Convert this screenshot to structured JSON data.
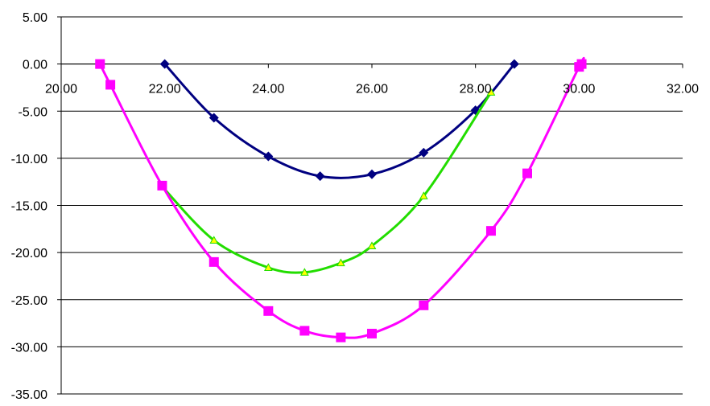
{
  "chart_data": {
    "type": "scatter",
    "title": "",
    "xlabel": "",
    "ylabel": "",
    "xlim": [
      20,
      32
    ],
    "ylim": [
      -35,
      5
    ],
    "x_ticks": [
      "20.00",
      "22.00",
      "24.00",
      "26.00",
      "28.00",
      "30.00",
      "32.00"
    ],
    "y_ticks": [
      "5.00",
      "0.00",
      "-5.00",
      "-10.00",
      "-15.00",
      "-20.00",
      "-25.00",
      "-30.00",
      "-35.00"
    ],
    "grid": "horizontal",
    "legend": "none",
    "series": [
      {
        "color": "#000080",
        "marker": "diamond",
        "points": [
          [
            22.0,
            0.0
          ],
          [
            22.95,
            -5.7
          ],
          [
            24.0,
            -9.8
          ],
          [
            25.0,
            -11.9
          ],
          [
            26.0,
            -11.7
          ],
          [
            27.0,
            -9.4
          ],
          [
            28.0,
            -4.9
          ],
          [
            28.75,
            0.0
          ]
        ]
      },
      {
        "color": "#22dd00",
        "marker_color": "#ffff00",
        "marker": "triangle",
        "points": [
          [
            21.95,
            -13.0
          ],
          [
            22.95,
            -18.7
          ],
          [
            24.0,
            -21.6
          ],
          [
            24.7,
            -22.1
          ],
          [
            25.4,
            -21.1
          ],
          [
            26.0,
            -19.3
          ],
          [
            27.0,
            -14.0
          ],
          [
            28.3,
            -3.0
          ]
        ]
      },
      {
        "color": "#ff00ff",
        "marker": "square",
        "points": [
          [
            20.75,
            0.0
          ],
          [
            20.95,
            -2.2
          ],
          [
            21.95,
            -12.9
          ],
          [
            22.95,
            -21.0
          ],
          [
            24.0,
            -26.2
          ],
          [
            24.7,
            -28.3
          ],
          [
            25.4,
            -29.0
          ],
          [
            26.0,
            -28.6
          ],
          [
            27.0,
            -25.6
          ],
          [
            28.3,
            -17.7
          ],
          [
            29.0,
            -11.6
          ],
          [
            30.0,
            -0.3
          ],
          [
            30.05,
            0.0
          ]
        ]
      }
    ]
  }
}
